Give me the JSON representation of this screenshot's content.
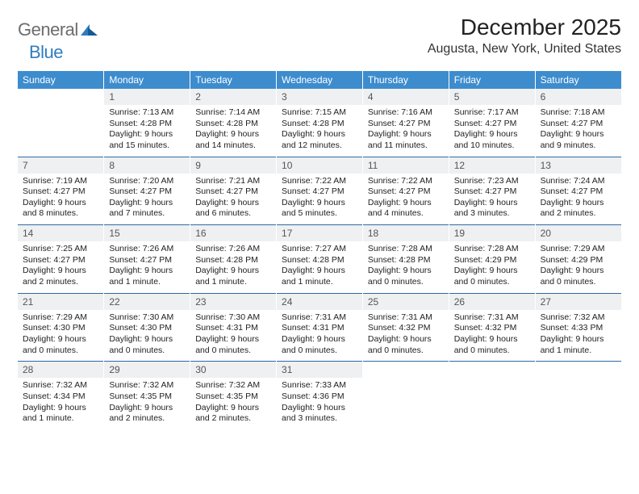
{
  "logo": {
    "general": "General",
    "blue": "Blue"
  },
  "title": "December 2025",
  "location": "Augusta, New York, United States",
  "colors": {
    "header_bg": "#3d8cce",
    "header_text": "#ffffff",
    "daynum_bg": "#eef0f2",
    "daynum_text": "#555555",
    "body_text": "#222222",
    "separator": "#2f6aa3",
    "logo_gray": "#6d6d6d",
    "logo_blue": "#2f7dc0",
    "logo_dark": "#145a96",
    "background": "#ffffff"
  },
  "day_headers": [
    "Sunday",
    "Monday",
    "Tuesday",
    "Wednesday",
    "Thursday",
    "Friday",
    "Saturday"
  ],
  "weeks": [
    [
      null,
      {
        "n": "1",
        "sr": "7:13 AM",
        "ss": "4:28 PM",
        "dl": "9 hours and 15 minutes."
      },
      {
        "n": "2",
        "sr": "7:14 AM",
        "ss": "4:28 PM",
        "dl": "9 hours and 14 minutes."
      },
      {
        "n": "3",
        "sr": "7:15 AM",
        "ss": "4:28 PM",
        "dl": "9 hours and 12 minutes."
      },
      {
        "n": "4",
        "sr": "7:16 AM",
        "ss": "4:27 PM",
        "dl": "9 hours and 11 minutes."
      },
      {
        "n": "5",
        "sr": "7:17 AM",
        "ss": "4:27 PM",
        "dl": "9 hours and 10 minutes."
      },
      {
        "n": "6",
        "sr": "7:18 AM",
        "ss": "4:27 PM",
        "dl": "9 hours and 9 minutes."
      }
    ],
    [
      {
        "n": "7",
        "sr": "7:19 AM",
        "ss": "4:27 PM",
        "dl": "9 hours and 8 minutes."
      },
      {
        "n": "8",
        "sr": "7:20 AM",
        "ss": "4:27 PM",
        "dl": "9 hours and 7 minutes."
      },
      {
        "n": "9",
        "sr": "7:21 AM",
        "ss": "4:27 PM",
        "dl": "9 hours and 6 minutes."
      },
      {
        "n": "10",
        "sr": "7:22 AM",
        "ss": "4:27 PM",
        "dl": "9 hours and 5 minutes."
      },
      {
        "n": "11",
        "sr": "7:22 AM",
        "ss": "4:27 PM",
        "dl": "9 hours and 4 minutes."
      },
      {
        "n": "12",
        "sr": "7:23 AM",
        "ss": "4:27 PM",
        "dl": "9 hours and 3 minutes."
      },
      {
        "n": "13",
        "sr": "7:24 AM",
        "ss": "4:27 PM",
        "dl": "9 hours and 2 minutes."
      }
    ],
    [
      {
        "n": "14",
        "sr": "7:25 AM",
        "ss": "4:27 PM",
        "dl": "9 hours and 2 minutes."
      },
      {
        "n": "15",
        "sr": "7:26 AM",
        "ss": "4:27 PM",
        "dl": "9 hours and 1 minute."
      },
      {
        "n": "16",
        "sr": "7:26 AM",
        "ss": "4:28 PM",
        "dl": "9 hours and 1 minute."
      },
      {
        "n": "17",
        "sr": "7:27 AM",
        "ss": "4:28 PM",
        "dl": "9 hours and 1 minute."
      },
      {
        "n": "18",
        "sr": "7:28 AM",
        "ss": "4:28 PM",
        "dl": "9 hours and 0 minutes."
      },
      {
        "n": "19",
        "sr": "7:28 AM",
        "ss": "4:29 PM",
        "dl": "9 hours and 0 minutes."
      },
      {
        "n": "20",
        "sr": "7:29 AM",
        "ss": "4:29 PM",
        "dl": "9 hours and 0 minutes."
      }
    ],
    [
      {
        "n": "21",
        "sr": "7:29 AM",
        "ss": "4:30 PM",
        "dl": "9 hours and 0 minutes."
      },
      {
        "n": "22",
        "sr": "7:30 AM",
        "ss": "4:30 PM",
        "dl": "9 hours and 0 minutes."
      },
      {
        "n": "23",
        "sr": "7:30 AM",
        "ss": "4:31 PM",
        "dl": "9 hours and 0 minutes."
      },
      {
        "n": "24",
        "sr": "7:31 AM",
        "ss": "4:31 PM",
        "dl": "9 hours and 0 minutes."
      },
      {
        "n": "25",
        "sr": "7:31 AM",
        "ss": "4:32 PM",
        "dl": "9 hours and 0 minutes."
      },
      {
        "n": "26",
        "sr": "7:31 AM",
        "ss": "4:32 PM",
        "dl": "9 hours and 0 minutes."
      },
      {
        "n": "27",
        "sr": "7:32 AM",
        "ss": "4:33 PM",
        "dl": "9 hours and 1 minute."
      }
    ],
    [
      {
        "n": "28",
        "sr": "7:32 AM",
        "ss": "4:34 PM",
        "dl": "9 hours and 1 minute."
      },
      {
        "n": "29",
        "sr": "7:32 AM",
        "ss": "4:35 PM",
        "dl": "9 hours and 2 minutes."
      },
      {
        "n": "30",
        "sr": "7:32 AM",
        "ss": "4:35 PM",
        "dl": "9 hours and 2 minutes."
      },
      {
        "n": "31",
        "sr": "7:33 AM",
        "ss": "4:36 PM",
        "dl": "9 hours and 3 minutes."
      },
      null,
      null,
      null
    ]
  ],
  "labels": {
    "sunrise": "Sunrise:",
    "sunset": "Sunset:",
    "daylight": "Daylight:"
  }
}
